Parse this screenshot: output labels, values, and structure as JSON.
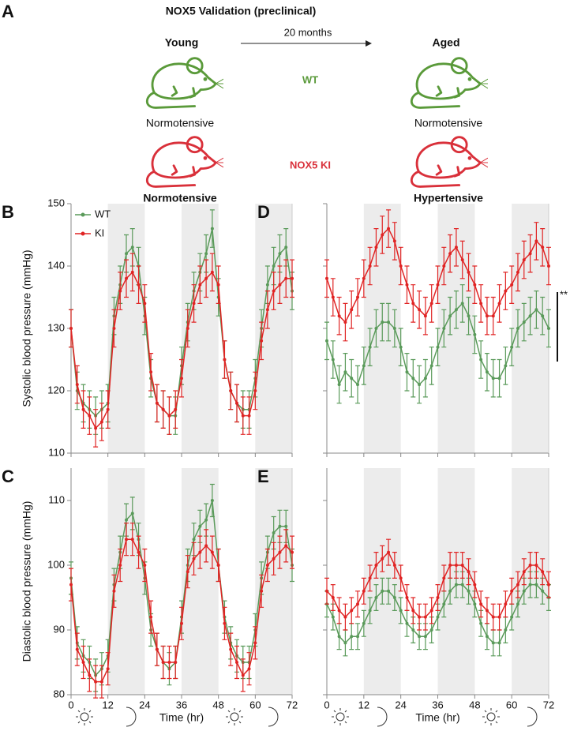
{
  "figure": {
    "panel": "A",
    "title": "NOX5 Validation (preclinical)",
    "arrow_label": "20 months",
    "columns": [
      "Young",
      "Aged"
    ],
    "rows": [
      {
        "label": "WT",
        "young": "Normotensive",
        "aged": "Normotensive"
      },
      {
        "label": "NOX5 KI",
        "young": "Normotensive",
        "aged": "Hypertensive"
      }
    ]
  },
  "chart_data": [
    {
      "type": "line",
      "panel": "B",
      "ylabel": "Systolic blood pressure (mmHg)",
      "x": [
        0,
        2,
        4,
        6,
        8,
        10,
        12,
        14,
        16,
        18,
        20,
        22,
        24,
        26,
        28,
        30,
        32,
        34,
        36,
        38,
        40,
        42,
        44,
        46,
        48,
        50,
        52,
        54,
        56,
        58,
        60,
        62,
        64,
        66,
        68,
        70,
        72
      ],
      "xlim": [
        0,
        72
      ],
      "xticks": [
        0,
        12,
        24,
        36,
        48,
        60,
        72
      ],
      "xtick_labels": false,
      "ylim": [
        110,
        150
      ],
      "yticks": [
        110,
        120,
        130,
        140,
        150
      ],
      "ytick_labels": true,
      "shade": [
        [
          12,
          24
        ],
        [
          36,
          48
        ],
        [
          60,
          72
        ]
      ],
      "legend": "upper left",
      "series": [
        {
          "name": "WT",
          "color": "#5a9a5a",
          "error": 3,
          "values": [
            130,
            120,
            118,
            117,
            116,
            117,
            118,
            132,
            137,
            142,
            143,
            140,
            132,
            122,
            118,
            117,
            116,
            116,
            124,
            131,
            136,
            139,
            142,
            146,
            135,
            125,
            120,
            118,
            117,
            117,
            122,
            130,
            137,
            140,
            142,
            143,
            136
          ]
        },
        {
          "name": "KI",
          "color": "#e02424",
          "error": 3,
          "values": [
            130,
            121,
            117,
            116,
            114,
            115,
            117,
            130,
            136,
            138,
            139,
            137,
            134,
            123,
            118,
            117,
            116,
            117,
            122,
            130,
            134,
            137,
            138,
            139,
            137,
            125,
            120,
            118,
            116,
            116,
            120,
            128,
            133,
            136,
            137,
            138,
            138
          ]
        }
      ]
    },
    {
      "type": "line",
      "panel": "C",
      "ylabel": "Diastolic blood pressure (mmHg)",
      "xlabel": "Time (hr)",
      "x": [
        0,
        2,
        4,
        6,
        8,
        10,
        12,
        14,
        16,
        18,
        20,
        22,
        24,
        26,
        28,
        30,
        32,
        34,
        36,
        38,
        40,
        42,
        44,
        46,
        48,
        50,
        52,
        54,
        56,
        58,
        60,
        62,
        64,
        66,
        68,
        70,
        72
      ],
      "xlim": [
        0,
        72
      ],
      "xticks": [
        0,
        12,
        24,
        36,
        48,
        60,
        72
      ],
      "xtick_labels": true,
      "ylim": [
        80,
        115
      ],
      "yticks": [
        80,
        90,
        100,
        110
      ],
      "ytick_labels": true,
      "shade": [
        [
          12,
          24
        ],
        [
          36,
          48
        ],
        [
          60,
          72
        ]
      ],
      "series": [
        {
          "name": "WT",
          "color": "#5a9a5a",
          "error": 2.5,
          "values": [
            98,
            88,
            86,
            85,
            83,
            84,
            86,
            97,
            102,
            107,
            108,
            104,
            98,
            90,
            87,
            85,
            84,
            85,
            92,
            100,
            104,
            106,
            107,
            110,
            100,
            92,
            88,
            86,
            85,
            85,
            90,
            98,
            102,
            105,
            106,
            106,
            100
          ]
        },
        {
          "name": "KI",
          "color": "#e02424",
          "error": 2.5,
          "values": [
            97,
            87,
            85,
            83,
            82,
            82,
            84,
            96,
            100,
            104,
            104,
            102,
            100,
            92,
            87,
            85,
            85,
            85,
            91,
            99,
            101,
            102,
            103,
            102,
            100,
            91,
            87,
            85,
            83,
            84,
            88,
            96,
            100,
            101,
            102,
            103,
            102
          ]
        }
      ]
    },
    {
      "type": "line",
      "panel": "D",
      "annotation": "**",
      "x": [
        0,
        2,
        4,
        6,
        8,
        10,
        12,
        14,
        16,
        18,
        20,
        22,
        24,
        26,
        28,
        30,
        32,
        34,
        36,
        38,
        40,
        42,
        44,
        46,
        48,
        50,
        52,
        54,
        56,
        58,
        60,
        62,
        64,
        66,
        68,
        70,
        72
      ],
      "xlim": [
        0,
        72
      ],
      "xticks": [
        0,
        12,
        24,
        36,
        48,
        60,
        72
      ],
      "xtick_labels": false,
      "ylim": [
        110,
        150
      ],
      "yticks": [
        110,
        120,
        130,
        140,
        150
      ],
      "ytick_labels": false,
      "shade": [
        [
          12,
          24
        ],
        [
          36,
          48
        ],
        [
          60,
          72
        ]
      ],
      "series": [
        {
          "name": "WT",
          "color": "#5a9a5a",
          "error": 3,
          "values": [
            128,
            125,
            121,
            123,
            122,
            121,
            124,
            127,
            130,
            131,
            131,
            130,
            127,
            123,
            122,
            121,
            122,
            124,
            127,
            130,
            132,
            133,
            134,
            132,
            129,
            125,
            123,
            122,
            122,
            124,
            127,
            130,
            131,
            132,
            133,
            132,
            130
          ]
        },
        {
          "name": "KI",
          "color": "#e02424",
          "error": 3,
          "values": [
            138,
            135,
            132,
            131,
            133,
            135,
            138,
            140,
            143,
            145,
            146,
            144,
            140,
            137,
            134,
            133,
            132,
            134,
            137,
            140,
            142,
            143,
            141,
            139,
            137,
            134,
            132,
            132,
            134,
            136,
            137,
            139,
            141,
            142,
            144,
            143,
            140
          ]
        }
      ]
    },
    {
      "type": "line",
      "panel": "E",
      "xlabel": "Time (hr)",
      "x": [
        0,
        2,
        4,
        6,
        8,
        10,
        12,
        14,
        16,
        18,
        20,
        22,
        24,
        26,
        28,
        30,
        32,
        34,
        36,
        38,
        40,
        42,
        44,
        46,
        48,
        50,
        52,
        54,
        56,
        58,
        60,
        62,
        64,
        66,
        68,
        70,
        72
      ],
      "xlim": [
        0,
        72
      ],
      "xticks": [
        0,
        12,
        24,
        36,
        48,
        60,
        72
      ],
      "xtick_labels": true,
      "ylim": [
        80,
        115
      ],
      "yticks": [
        80,
        90,
        100,
        110
      ],
      "ytick_labels": false,
      "shade": [
        [
          12,
          24
        ],
        [
          36,
          48
        ],
        [
          60,
          72
        ]
      ],
      "series": [
        {
          "name": "WT",
          "color": "#5a9a5a",
          "error": 2,
          "values": [
            94,
            92,
            89,
            88,
            89,
            89,
            91,
            93,
            95,
            96,
            96,
            95,
            93,
            91,
            90,
            89,
            89,
            90,
            92,
            94,
            96,
            97,
            97,
            96,
            94,
            91,
            89,
            88,
            88,
            90,
            92,
            94,
            96,
            97,
            97,
            96,
            95
          ]
        },
        {
          "name": "KI",
          "color": "#e02424",
          "error": 2,
          "values": [
            96,
            95,
            93,
            92,
            93,
            94,
            96,
            98,
            100,
            101,
            102,
            100,
            98,
            95,
            93,
            92,
            92,
            93,
            95,
            98,
            100,
            100,
            100,
            99,
            97,
            94,
            93,
            92,
            92,
            94,
            96,
            97,
            99,
            100,
            100,
            99,
            97
          ]
        }
      ]
    }
  ]
}
